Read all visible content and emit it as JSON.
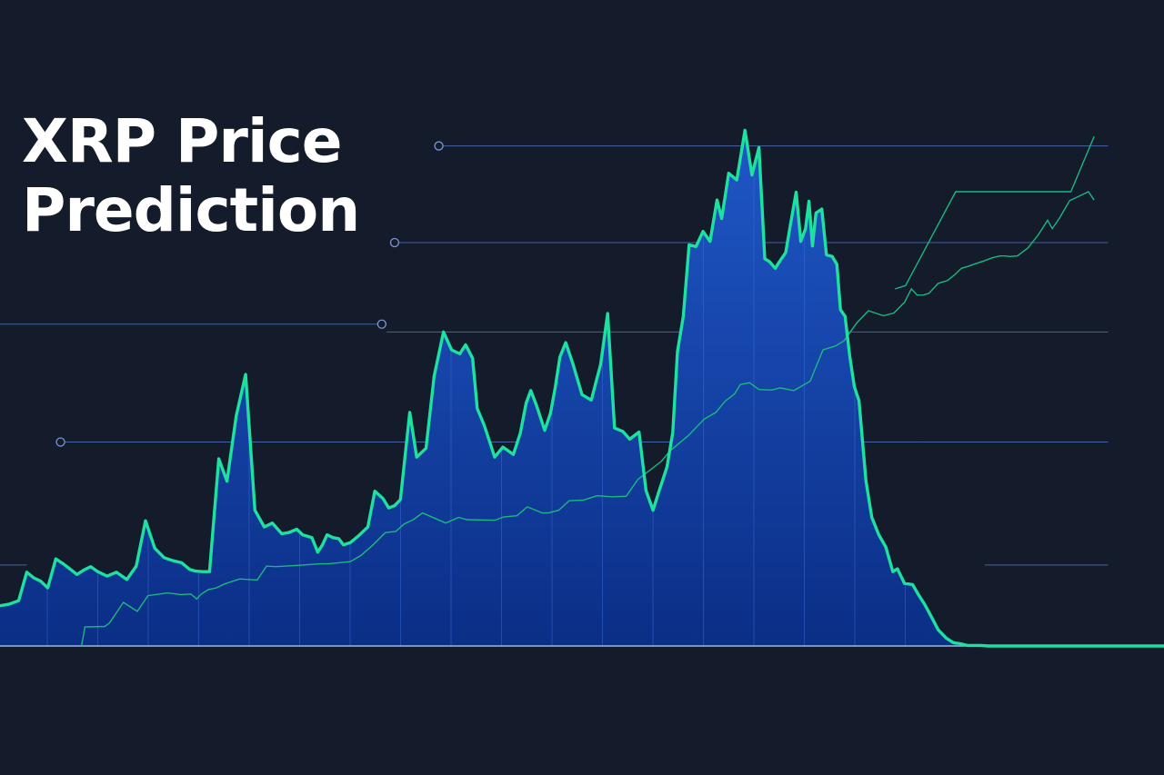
{
  "title": "XRP Price\nPrediction",
  "colors": {
    "background": "#141b2a",
    "price_line": "#1ee0a1",
    "area_top": "#1f57c6",
    "area_bottom": "#0b2e86",
    "trend_line": "#19b97f",
    "level_line": "#4d6fb8"
  },
  "chart_data": {
    "type": "area",
    "title": "XRP Price Prediction",
    "xlabel": "",
    "ylabel": "",
    "grid": false,
    "legend": "none",
    "xlim": [
      0,
      100
    ],
    "ylim": [
      0,
      100
    ],
    "series": [
      {
        "style": "area-line",
        "x": [
          0,
          0.8,
          1.6,
          2.3,
          2.9,
          3.5,
          4.1,
          4.8,
          5.5,
          6.0,
          6.6,
          7.2,
          7.8,
          8.4,
          9.2,
          10.0,
          10.9,
          11.7,
          12.5,
          13.3,
          14.1,
          14.8,
          15.6,
          16.3,
          16.8,
          17.4,
          18.0,
          18.8,
          19.5,
          20.3,
          21.1,
          21.9,
          22.7,
          23.4,
          24.2,
          24.8,
          25.5,
          26.0,
          26.8,
          27.3,
          27.7,
          28.1,
          28.6,
          29.1,
          29.5,
          30.1,
          30.8,
          31.6,
          32.2,
          32.9,
          33.4,
          33.9,
          34.4,
          35.2,
          35.8,
          36.6,
          37.3,
          38.1,
          38.8,
          39.5,
          40.0,
          40.6,
          41.0,
          41.6,
          42.5,
          43.2,
          44.1,
          44.7,
          45.2,
          45.6,
          46.1,
          46.8,
          47.3,
          47.7,
          48.1,
          48.6,
          49.2,
          50.0,
          50.8,
          51.6,
          52.2,
          52.8,
          53.5,
          54.1,
          54.9,
          55.5,
          56.1,
          56.6,
          57.3,
          57.8,
          58.2,
          58.7,
          59.2,
          59.8,
          60.4,
          61.0,
          61.6,
          62.0,
          62.6,
          63.3,
          64.0,
          64.6,
          65.2,
          65.7,
          66.1,
          66.6,
          67.0,
          67.5,
          67.9,
          68.4,
          68.8,
          69.2,
          69.5,
          69.8,
          70.1,
          70.6,
          71.0,
          71.5,
          71.9,
          72.2,
          72.6,
          73.0,
          73.4,
          73.8,
          74.4,
          74.9,
          75.5,
          76.1,
          76.7,
          77.1,
          77.7,
          78.4,
          78.9,
          79.4,
          80.0,
          80.6,
          81.3,
          81.9,
          82.5,
          83.1,
          83.8,
          84.3,
          84.9,
          85.4,
          100
        ],
        "y": [
          7.2,
          7.5,
          8.1,
          13.2,
          12.2,
          11.6,
          10.4,
          15.6,
          14.6,
          13.8,
          12.8,
          13.6,
          14.2,
          13.3,
          12.5,
          13.2,
          11.9,
          14.3,
          22.4,
          17.5,
          15.8,
          15.3,
          14.9,
          13.7,
          13.4,
          13.3,
          13.3,
          33.5,
          29.5,
          41.2,
          48.6,
          24.3,
          21.3,
          22.0,
          20.1,
          20.3,
          20.9,
          19.9,
          19.4,
          16.8,
          18.1,
          19.9,
          19.4,
          19.2,
          18.1,
          18.5,
          19.7,
          21.3,
          27.7,
          26.4,
          24.7,
          25.1,
          26.2,
          41.8,
          33.8,
          35.4,
          48.3,
          56.2,
          53.0,
          52.3,
          53.9,
          51.5,
          42.5,
          39.5,
          33.8,
          35.6,
          34.3,
          38.1,
          43.5,
          45.7,
          43.0,
          38.6,
          41.7,
          46.3,
          51.7,
          54.3,
          50.6,
          45.0,
          44.0,
          50.4,
          59.5,
          39.0,
          38.4,
          37.0,
          38.3,
          27.8,
          24.3,
          27.6,
          32.0,
          38.2,
          52.7,
          59.0,
          71.8,
          71.5,
          74.2,
          72.4,
          79.8,
          76.5,
          84.6,
          83.4,
          92.3,
          84.3,
          89.2,
          69.3,
          68.8,
          67.6,
          68.9,
          70.4,
          75.3,
          81.2,
          72.4,
          74.7,
          79.6,
          71.6,
          77.5,
          78.2,
          70.0,
          69.7,
          68.3,
          60.2,
          59.0,
          51.9,
          46.4,
          43.9,
          29.5,
          23.0,
          19.9,
          17.7,
          13.3,
          13.8,
          11.2,
          11.0,
          9.2,
          7.6,
          5.3,
          2.9,
          1.4,
          0.6,
          0.4,
          0.1,
          0.1,
          0.1,
          0.0,
          0.0,
          0.0
        ]
      },
      {
        "style": "thin-trend",
        "x": [
          7.0,
          7.3,
          9.0,
          9.4,
          10.6,
          11.8,
          12.7,
          14.4,
          15.5,
          16.4,
          16.9,
          17.3,
          17.9,
          18.6,
          19.3,
          20.6,
          22.1,
          22.9,
          23.7,
          25.4,
          26.8,
          27.5,
          28.2,
          29.1,
          30.1,
          31.0,
          32.0,
          33.1,
          34.0,
          34.7,
          35.5,
          36.3,
          38.3,
          39.4,
          40.1,
          42.5,
          43.3,
          44.4,
          45.3,
          46.6,
          47.1,
          48.0,
          48.9,
          50.1,
          51.3,
          52.6,
          53.8,
          54.8,
          56.8,
          57.6,
          59.1,
          60.5,
          61.5,
          62.3,
          63.1,
          63.6,
          64.4,
          65.2,
          66.3,
          67.0,
          68.2,
          69.6,
          70.7,
          71.8,
          72.5,
          73.6,
          74.6,
          75.9,
          76.8,
          77.7,
          78.3,
          78.8,
          79.3,
          79.8,
          80.6,
          81.4,
          82.0,
          82.6,
          83.1,
          83.8,
          84.5,
          85.3,
          85.9,
          86.3,
          86.8,
          87.4,
          88.3,
          89.2,
          90.0,
          90.4,
          91.0,
          91.9,
          92.5,
          93.5,
          94.0
        ],
        "y": [
          0.0,
          3.4,
          3.5,
          4.1,
          7.8,
          6.2,
          9.0,
          9.5,
          9.2,
          9.3,
          8.4,
          9.3,
          10.1,
          10.4,
          11.1,
          12.0,
          11.8,
          14.3,
          14.2,
          14.4,
          14.6,
          14.7,
          14.7,
          14.9,
          15.1,
          16.2,
          18.0,
          20.3,
          20.5,
          21.8,
          22.6,
          23.8,
          22.0,
          23.0,
          22.6,
          22.5,
          23.1,
          23.3,
          24.9,
          23.8,
          23.8,
          24.3,
          26.0,
          26.1,
          26.9,
          26.7,
          26.8,
          29.8,
          33.0,
          35.0,
          37.6,
          40.6,
          41.8,
          43.8,
          45.1,
          46.8,
          47.1,
          45.9,
          45.8,
          46.2,
          45.7,
          47.4,
          53.0,
          53.7,
          54.6,
          57.8,
          60.0,
          59.1,
          59.6,
          61.5,
          63.9,
          62.8,
          62.8,
          63.1,
          64.9,
          65.4,
          66.4,
          67.6,
          67.9,
          68.4,
          68.9,
          69.5,
          69.8,
          69.8,
          69.7,
          69.8,
          71.2,
          73.6,
          76.2,
          74.7,
          76.5,
          79.7,
          80.3,
          81.3,
          79.8
        ]
      },
      {
        "style": "forecast",
        "x": [
          76.9,
          77.8,
          82.1,
          92.0,
          94.0
        ],
        "y": [
          63.9,
          64.5,
          81.3,
          81.3,
          91.2
        ]
      }
    ],
    "levels": [
      {
        "value": 89.5,
        "x_from": 37.7,
        "x_to": 95.2
      },
      {
        "value": 72.2,
        "x_from": 33.9,
        "x_to": 95.2
      },
      {
        "value": 56.2,
        "x_from": 33.2,
        "x_to": 95.2
      },
      {
        "value": 57.6,
        "x_from": 0,
        "x_to": 32.8
      },
      {
        "value": 36.5,
        "x_from": 5.2,
        "x_to": 79.2
      },
      {
        "value": 36.5,
        "x_from": 79.2,
        "x_to": 95.2
      },
      {
        "value": 14.5,
        "x_from": 0,
        "x_to": 2.3
      },
      {
        "value": 14.5,
        "x_from": 84.6,
        "x_to": 95.2
      },
      {
        "value": 19.2,
        "x_from": 35.2,
        "x_to": 38.5
      }
    ],
    "level_markers": [
      {
        "value": 89.5,
        "x": 37.7
      },
      {
        "value": 72.2,
        "x": 33.9
      },
      {
        "value": 57.6,
        "x": 32.8
      },
      {
        "value": 36.5,
        "x": 5.2
      }
    ]
  }
}
